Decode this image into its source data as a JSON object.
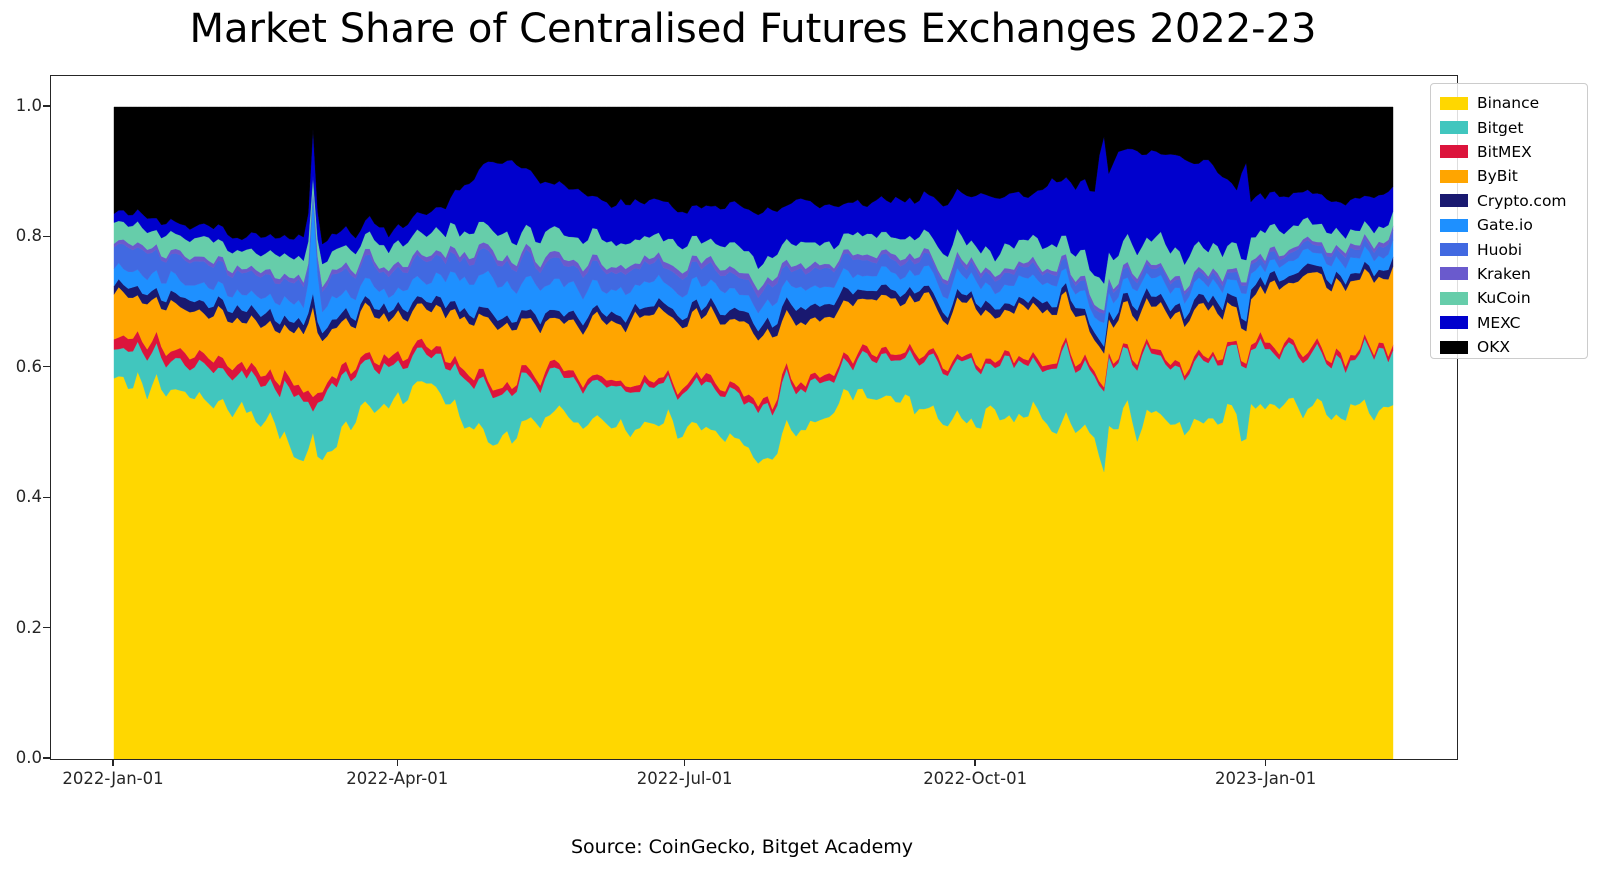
{
  "title": "Market Share of Centralised Futures Exchanges 2022-23",
  "source_caption": "Source: CoinGecko, Bitget Academy",
  "axes": {
    "y_tick_labels": [
      "0.0",
      "0.2",
      "0.4",
      "0.6",
      "0.8",
      "1.0"
    ],
    "y_tick_values": [
      0.0,
      0.2,
      0.4,
      0.6,
      0.8,
      1.0
    ],
    "x_tick_labels": [
      "2022-Jan-01",
      "2022-Apr-01",
      "2022-Jul-01",
      "2022-Oct-01",
      "2023-Jan-01"
    ],
    "x_tick_days": [
      0,
      90,
      181,
      273,
      365
    ]
  },
  "chart_data": {
    "type": "area",
    "stacked": true,
    "normalized_to_one": true,
    "title": "Market Share of Centralised Futures Exchanges 2022-23",
    "xlabel": "",
    "ylabel": "",
    "ylim": [
      0.0,
      1.0
    ],
    "x_unit": "days since 2022-01-01",
    "x_range_days": [
      0,
      405
    ],
    "x_tick_labels": [
      "2022-Jan-01",
      "2022-Apr-01",
      "2022-Jul-01",
      "2022-Oct-01",
      "2023-Jan-01"
    ],
    "legend_position": "upper-right-outside",
    "grid": false,
    "sample_days": [
      0,
      10,
      20,
      30,
      40,
      50,
      58,
      61,
      63,
      65,
      68,
      78,
      90,
      100,
      110,
      118,
      126,
      134,
      142,
      150,
      160,
      170,
      180,
      190,
      200,
      210,
      220,
      230,
      240,
      250,
      260,
      270,
      280,
      290,
      300,
      308,
      311,
      313,
      315,
      318,
      326,
      334,
      342,
      350,
      355,
      356,
      358,
      360,
      362,
      370,
      380,
      390,
      398,
      405
    ],
    "series": [
      {
        "name": "Binance",
        "color": "#FFD700",
        "values": [
          0.575,
          0.57,
          0.555,
          0.545,
          0.535,
          0.525,
          0.475,
          0.465,
          0.5,
          0.46,
          0.465,
          0.53,
          0.555,
          0.57,
          0.52,
          0.485,
          0.495,
          0.515,
          0.525,
          0.52,
          0.5,
          0.51,
          0.5,
          0.495,
          0.475,
          0.48,
          0.52,
          0.545,
          0.56,
          0.545,
          0.52,
          0.53,
          0.52,
          0.54,
          0.52,
          0.505,
          0.495,
          0.385,
          0.505,
          0.52,
          0.53,
          0.525,
          0.505,
          0.515,
          0.52,
          0.52,
          0.47,
          0.545,
          0.54,
          0.545,
          0.54,
          0.525,
          0.535,
          0.55
        ]
      },
      {
        "name": "Bitget",
        "color": "#41C6BE",
        "values": [
          0.045,
          0.05,
          0.048,
          0.052,
          0.055,
          0.058,
          0.085,
          0.09,
          0.03,
          0.1,
          0.095,
          0.075,
          0.05,
          0.048,
          0.065,
          0.08,
          0.07,
          0.062,
          0.058,
          0.056,
          0.058,
          0.06,
          0.062,
          0.068,
          0.075,
          0.08,
          0.062,
          0.055,
          0.058,
          0.068,
          0.075,
          0.078,
          0.082,
          0.075,
          0.088,
          0.095,
          0.1,
          0.115,
          0.1,
          0.095,
          0.092,
          0.095,
          0.1,
          0.095,
          0.095,
          0.095,
          0.13,
          0.085,
          0.085,
          0.08,
          0.082,
          0.085,
          0.083,
          0.085
        ]
      },
      {
        "name": "BitMEX",
        "color": "#DC143C",
        "values": [
          0.018,
          0.017,
          0.016,
          0.016,
          0.015,
          0.015,
          0.014,
          0.014,
          0.02,
          0.014,
          0.014,
          0.013,
          0.013,
          0.012,
          0.012,
          0.012,
          0.011,
          0.011,
          0.011,
          0.01,
          0.01,
          0.01,
          0.01,
          0.01,
          0.01,
          0.01,
          0.009,
          0.009,
          0.01,
          0.009,
          0.009,
          0.008,
          0.008,
          0.008,
          0.008,
          0.008,
          0.007,
          0.006,
          0.007,
          0.008,
          0.008,
          0.008,
          0.007,
          0.007,
          0.007,
          0.007,
          0.006,
          0.007,
          0.008,
          0.008,
          0.008,
          0.008,
          0.007,
          0.007
        ]
      },
      {
        "name": "ByBit",
        "color": "#FFA500",
        "values": [
          0.065,
          0.068,
          0.07,
          0.07,
          0.072,
          0.075,
          0.08,
          0.082,
          0.13,
          0.076,
          0.075,
          0.07,
          0.062,
          0.058,
          0.075,
          0.1,
          0.085,
          0.078,
          0.08,
          0.085,
          0.1,
          0.105,
          0.095,
          0.105,
          0.1,
          0.098,
          0.088,
          0.078,
          0.075,
          0.085,
          0.082,
          0.078,
          0.075,
          0.073,
          0.075,
          0.062,
          0.055,
          0.045,
          0.06,
          0.068,
          0.065,
          0.07,
          0.075,
          0.072,
          0.06,
          0.055,
          0.04,
          0.075,
          0.085,
          0.1,
          0.108,
          0.112,
          0.115,
          0.113
        ]
      },
      {
        "name": "Crypto.com",
        "color": "#191970",
        "values": [
          0.015,
          0.015,
          0.015,
          0.016,
          0.016,
          0.016,
          0.015,
          0.015,
          0.02,
          0.015,
          0.015,
          0.014,
          0.013,
          0.013,
          0.013,
          0.012,
          0.012,
          0.012,
          0.012,
          0.012,
          0.012,
          0.012,
          0.013,
          0.014,
          0.016,
          0.018,
          0.024,
          0.02,
          0.015,
          0.013,
          0.012,
          0.012,
          0.012,
          0.012,
          0.012,
          0.012,
          0.011,
          0.01,
          0.012,
          0.013,
          0.014,
          0.015,
          0.014,
          0.013,
          0.013,
          0.013,
          0.012,
          0.013,
          0.013,
          0.012,
          0.012,
          0.012,
          0.012,
          0.012
        ]
      },
      {
        "name": "Gate.io",
        "color": "#1E90FF",
        "values": [
          0.025,
          0.025,
          0.026,
          0.026,
          0.026,
          0.027,
          0.028,
          0.028,
          0.15,
          0.033,
          0.032,
          0.028,
          0.028,
          0.03,
          0.048,
          0.058,
          0.052,
          0.048,
          0.042,
          0.04,
          0.038,
          0.036,
          0.034,
          0.032,
          0.031,
          0.03,
          0.028,
          0.027,
          0.026,
          0.027,
          0.028,
          0.028,
          0.029,
          0.03,
          0.03,
          0.026,
          0.024,
          0.03,
          0.025,
          0.026,
          0.026,
          0.025,
          0.025,
          0.024,
          0.028,
          0.03,
          0.05,
          0.026,
          0.024,
          0.023,
          0.022,
          0.022,
          0.022,
          0.022
        ]
      },
      {
        "name": "Huobi",
        "color": "#4169E1",
        "values": [
          0.036,
          0.035,
          0.034,
          0.033,
          0.032,
          0.031,
          0.03,
          0.029,
          0.01,
          0.029,
          0.03,
          0.031,
          0.032,
          0.033,
          0.034,
          0.035,
          0.034,
          0.032,
          0.031,
          0.03,
          0.029,
          0.028,
          0.028,
          0.027,
          0.026,
          0.025,
          0.024,
          0.023,
          0.022,
          0.021,
          0.02,
          0.018,
          0.017,
          0.016,
          0.015,
          0.014,
          0.013,
          0.012,
          0.013,
          0.014,
          0.013,
          0.013,
          0.012,
          0.012,
          0.012,
          0.012,
          0.01,
          0.012,
          0.012,
          0.012,
          0.013,
          0.013,
          0.013,
          0.013
        ]
      },
      {
        "name": "Kraken",
        "color": "#6A5ACD",
        "values": [
          0.007,
          0.007,
          0.007,
          0.007,
          0.007,
          0.008,
          0.008,
          0.008,
          0.005,
          0.008,
          0.008,
          0.008,
          0.008,
          0.008,
          0.008,
          0.009,
          0.009,
          0.009,
          0.009,
          0.009,
          0.009,
          0.009,
          0.009,
          0.009,
          0.009,
          0.009,
          0.008,
          0.008,
          0.008,
          0.008,
          0.007,
          0.007,
          0.007,
          0.007,
          0.006,
          0.006,
          0.006,
          0.005,
          0.006,
          0.006,
          0.006,
          0.006,
          0.006,
          0.006,
          0.006,
          0.006,
          0.005,
          0.006,
          0.006,
          0.006,
          0.006,
          0.006,
          0.006,
          0.006
        ]
      },
      {
        "name": "KuCoin",
        "color": "#66CDAA",
        "values": [
          0.028,
          0.028,
          0.029,
          0.029,
          0.03,
          0.03,
          0.03,
          0.03,
          0.02,
          0.03,
          0.03,
          0.03,
          0.031,
          0.032,
          0.034,
          0.035,
          0.035,
          0.036,
          0.038,
          0.04,
          0.038,
          0.036,
          0.035,
          0.035,
          0.035,
          0.035,
          0.033,
          0.031,
          0.03,
          0.03,
          0.031,
          0.031,
          0.032,
          0.033,
          0.035,
          0.038,
          0.04,
          0.045,
          0.041,
          0.042,
          0.042,
          0.041,
          0.04,
          0.038,
          0.034,
          0.033,
          0.03,
          0.035,
          0.036,
          0.032,
          0.028,
          0.025,
          0.023,
          0.022
        ]
      },
      {
        "name": "MEXC",
        "color": "#0000CD",
        "values": [
          0.015,
          0.017,
          0.019,
          0.021,
          0.023,
          0.027,
          0.035,
          0.04,
          0.08,
          0.03,
          0.028,
          0.024,
          0.025,
          0.028,
          0.06,
          0.09,
          0.115,
          0.095,
          0.07,
          0.065,
          0.06,
          0.055,
          0.052,
          0.058,
          0.063,
          0.065,
          0.058,
          0.052,
          0.05,
          0.058,
          0.068,
          0.075,
          0.085,
          0.075,
          0.098,
          0.12,
          0.13,
          0.32,
          0.14,
          0.14,
          0.135,
          0.13,
          0.135,
          0.125,
          0.095,
          0.09,
          0.18,
          0.055,
          0.06,
          0.05,
          0.048,
          0.05,
          0.047,
          0.045
        ]
      },
      {
        "name": "OKX",
        "color": "#000000",
        "values": [
          0.171,
          0.168,
          0.181,
          0.185,
          0.189,
          0.188,
          0.2,
          0.199,
          0.035,
          0.205,
          0.208,
          0.177,
          0.183,
          0.168,
          0.131,
          0.084,
          0.082,
          0.102,
          0.124,
          0.133,
          0.146,
          0.139,
          0.162,
          0.147,
          0.16,
          0.15,
          0.146,
          0.152,
          0.146,
          0.136,
          0.148,
          0.135,
          0.133,
          0.131,
          0.113,
          0.114,
          0.119,
          0.027,
          0.091,
          0.068,
          0.069,
          0.072,
          0.081,
          0.093,
          0.13,
          0.139,
          0.067,
          0.141,
          0.131,
          0.132,
          0.133,
          0.142,
          0.137,
          0.125
        ]
      }
    ]
  },
  "legend": {
    "items": [
      {
        "label": "Binance",
        "color": "#FFD700"
      },
      {
        "label": "Bitget",
        "color": "#41C6BE"
      },
      {
        "label": "BitMEX",
        "color": "#DC143C"
      },
      {
        "label": "ByBit",
        "color": "#FFA500"
      },
      {
        "label": "Crypto.com",
        "color": "#191970"
      },
      {
        "label": "Gate.io",
        "color": "#1E90FF"
      },
      {
        "label": "Huobi",
        "color": "#4169E1"
      },
      {
        "label": "Kraken",
        "color": "#6A5ACD"
      },
      {
        "label": "KuCoin",
        "color": "#66CDAA"
      },
      {
        "label": "MEXC",
        "color": "#0000CD"
      },
      {
        "label": "OKX",
        "color": "#000000"
      }
    ]
  }
}
